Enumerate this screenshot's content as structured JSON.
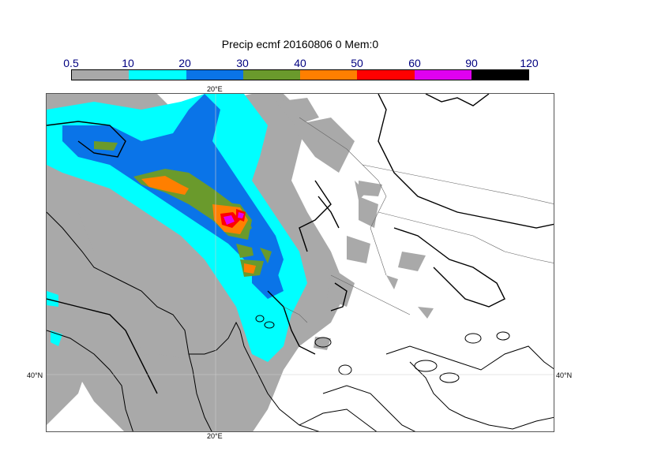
{
  "title": "Precip ecmf 20160806 0 Mem:0",
  "legend": {
    "ticks": [
      "0.5",
      "10",
      "20",
      "30",
      "40",
      "50",
      "60",
      "90",
      "120"
    ],
    "colors": [
      "#a9a9a9",
      "#00ffff",
      "#0a74e8",
      "#6a9a2c",
      "#ff7f00",
      "#ff0000",
      "#e000f0",
      "#000000"
    ]
  },
  "axes": {
    "top_lon_label": "20°E",
    "bottom_lon_label": "20°E",
    "left_lat_label": "40°N",
    "right_lat_label": "40°N"
  }
}
